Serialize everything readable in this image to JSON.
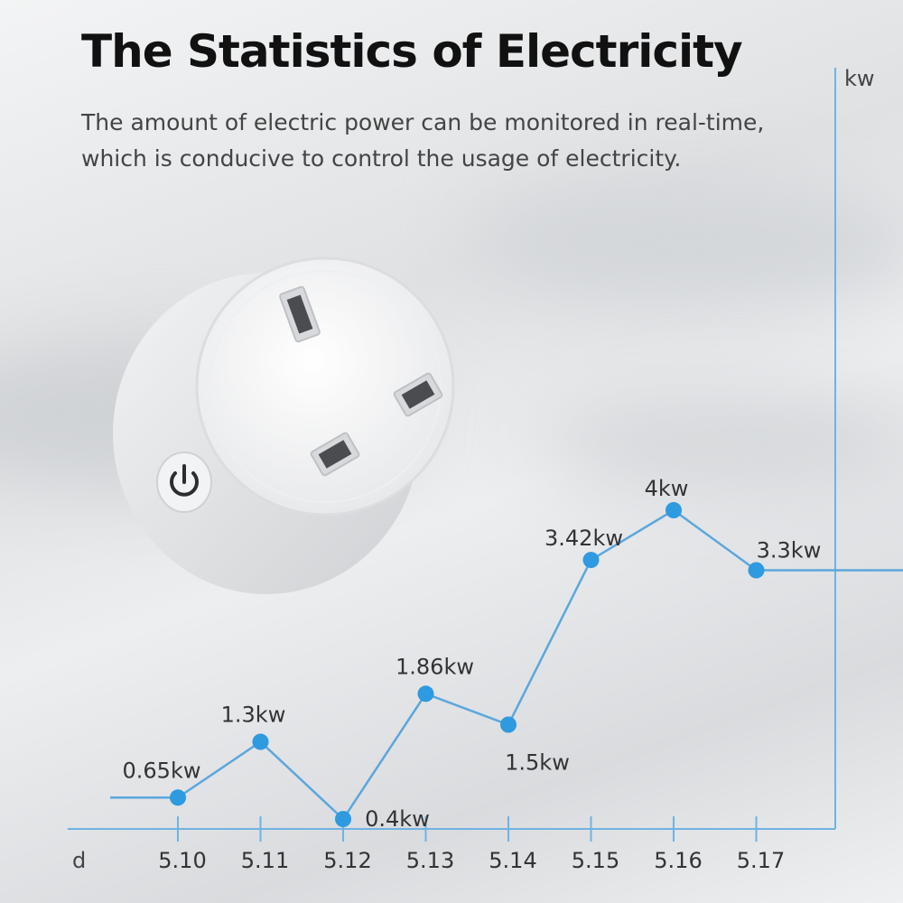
{
  "header": {
    "title": "The Statistics of Electricity",
    "subtitle": "The amount of electric power can be monitored in real-time, which is conducive to control the usage of electricity."
  },
  "product": {
    "icon": "smart-plug-uk-socket",
    "power_icon": "power-icon"
  },
  "colors": {
    "line": "#5aa7dc",
    "point": "#2e9ae0",
    "axis": "#6fb3e3",
    "label": "#333333"
  },
  "chart_data": {
    "type": "line",
    "xlabel": "d",
    "ylabel": "kw",
    "categories": [
      "5.10",
      "5.11",
      "5.12",
      "5.13",
      "5.14",
      "5.15",
      "5.16",
      "5.17"
    ],
    "values": [
      0.65,
      1.3,
      0.4,
      1.86,
      1.5,
      3.42,
      4,
      3.3
    ],
    "labels": [
      "0.65kw",
      "1.3kw",
      "0.4kw",
      "1.86kw",
      "1.5kw",
      "3.42kw",
      "4kw",
      "3.3kw"
    ],
    "grid": false
  }
}
